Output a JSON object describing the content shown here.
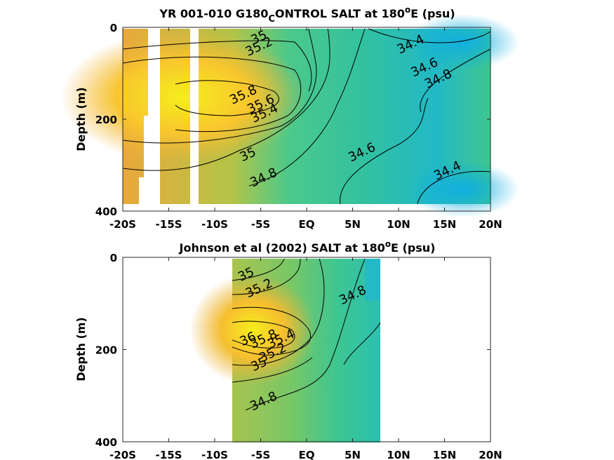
{
  "chart_data": [
    {
      "type": "contour",
      "title_main": "YR 001-010 G180",
      "title_sub": "C",
      "title_rest": "ONTROL SALT at 180",
      "title_sup": "o",
      "title_end": "E (psu)",
      "ylabel": "Depth (m)",
      "xlabel": "",
      "x_ticks": [
        "-20S",
        "-15S",
        "-10S",
        "-5S",
        "EQ",
        "5N",
        "10N",
        "15N",
        "20N"
      ],
      "x_values": [
        -20,
        -15,
        -10,
        -5,
        0,
        5,
        10,
        15,
        20
      ],
      "y_ticks": [
        "0",
        "200",
        "400"
      ],
      "y_values": [
        0,
        200,
        400
      ],
      "xlim": [
        -20,
        20
      ],
      "ylim": [
        400,
        0
      ],
      "colors": {
        "high": "#f5ee1c",
        "mid": "#3fc97a",
        "low": "#1ab5d8"
      },
      "contour_labels": [
        {
          "text": "35",
          "lat": -5,
          "depth": 30
        },
        {
          "text": "35.2",
          "lat": -5,
          "depth": 50
        },
        {
          "text": "34.4",
          "lat": 11.5,
          "depth": 45
        },
        {
          "text": "34.6",
          "lat": 13,
          "depth": 95
        },
        {
          "text": "34.8",
          "lat": 14.5,
          "depth": 120
        },
        {
          "text": "35.8",
          "lat": -6.7,
          "depth": 155
        },
        {
          "text": "35.6",
          "lat": -4.8,
          "depth": 175
        },
        {
          "text": "35.4",
          "lat": -4.4,
          "depth": 195
        },
        {
          "text": "35",
          "lat": -6.2,
          "depth": 285
        },
        {
          "text": "34.8",
          "lat": -4.5,
          "depth": 335
        },
        {
          "text": "34.6",
          "lat": 6.2,
          "depth": 280
        },
        {
          "text": "34.4",
          "lat": 15.5,
          "depth": 320
        }
      ],
      "missing_columns_lat": [
        [
          -18.2,
          -16.5
        ],
        [
          -12.2,
          -11.3
        ]
      ]
    },
    {
      "type": "contour",
      "title_main": "Johnson et al (2002) SALT at 180",
      "title_sup": "o",
      "title_end": "E (psu)",
      "ylabel": "Depth (m)",
      "xlabel": "",
      "x_ticks": [
        "-20S",
        "-15S",
        "-10S",
        "-5S",
        "EQ",
        "5N",
        "10N",
        "15N",
        "20N"
      ],
      "x_values": [
        -20,
        -15,
        -10,
        -5,
        0,
        5,
        10,
        15,
        20
      ],
      "y_ticks": [
        "0",
        "200",
        "400"
      ],
      "y_values": [
        0,
        200,
        400
      ],
      "xlim": [
        -20,
        20
      ],
      "ylim": [
        400,
        0
      ],
      "data_range_lat": [
        -8,
        8
      ],
      "contour_labels": [
        {
          "text": "35",
          "lat": -6.4,
          "depth": 45
        },
        {
          "text": "35.2",
          "lat": -5,
          "depth": 75
        },
        {
          "text": "34.8",
          "lat": 5.2,
          "depth": 90
        },
        {
          "text": "36",
          "lat": -6.2,
          "depth": 185
        },
        {
          "text": "35.8",
          "lat": -4.5,
          "depth": 185
        },
        {
          "text": "35.4",
          "lat": -2.6,
          "depth": 185
        },
        {
          "text": "35.2",
          "lat": -3.5,
          "depth": 215
        },
        {
          "text": "35",
          "lat": -5,
          "depth": 240
        },
        {
          "text": "34.8",
          "lat": -4.5,
          "depth": 320
        }
      ]
    }
  ]
}
